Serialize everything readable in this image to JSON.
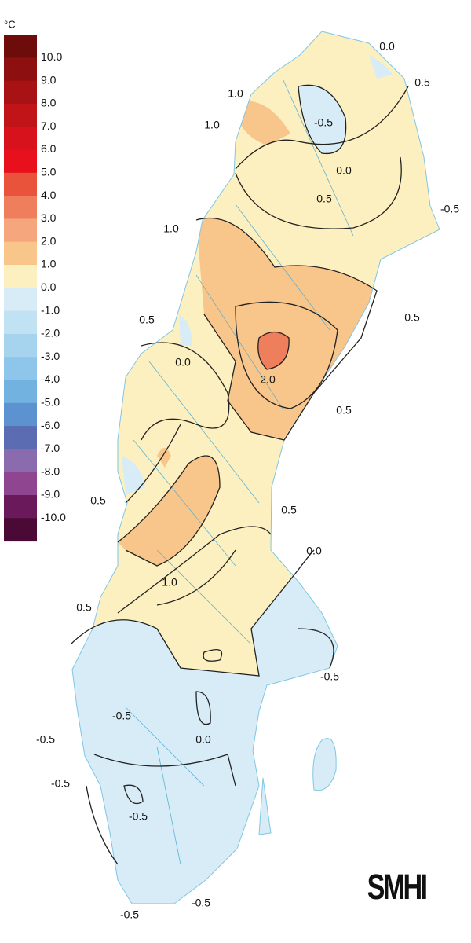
{
  "legend": {
    "unit": "°C",
    "labels": [
      "10.0",
      "9.0",
      "8.0",
      "7.0",
      "6.0",
      "5.0",
      "4.0",
      "3.0",
      "2.0",
      "1.0",
      "0.0",
      "-1.0",
      "-2.0",
      "-3.0",
      "-4.0",
      "-5.0",
      "-6.0",
      "-7.0",
      "-8.0",
      "-9.0",
      "-10.0"
    ],
    "colors": [
      "#6e0b0b",
      "#8e0f10",
      "#a81214",
      "#c11418",
      "#d8121c",
      "#e8101c",
      "#e9533c",
      "#ef7f5c",
      "#f5a67c",
      "#f8c58b",
      "#fdf0c0",
      "#d8ecf7",
      "#c0e2f3",
      "#a6d4ef",
      "#8dc6ea",
      "#72b2e1",
      "#5d92d0",
      "#5b6cb2",
      "#8a6bad",
      "#8f4590",
      "#6a1a5a",
      "#4a0a35"
    ]
  },
  "contour_labels": [
    "0.0",
    "0.5",
    "1.0",
    "-0.5",
    "1.0",
    "0.0",
    "0.5",
    "-0.5",
    "1.0",
    "0.5",
    "0.5",
    "0.0",
    "2.0",
    "0.5",
    "0.5",
    "0.5",
    "0.0",
    "1.0",
    "0.5",
    "-0.5",
    "-0.5",
    "0.0",
    "-0.5",
    "-0.5",
    "-0.5",
    "-0.5",
    "-0.5"
  ],
  "logo": "SMHI"
}
